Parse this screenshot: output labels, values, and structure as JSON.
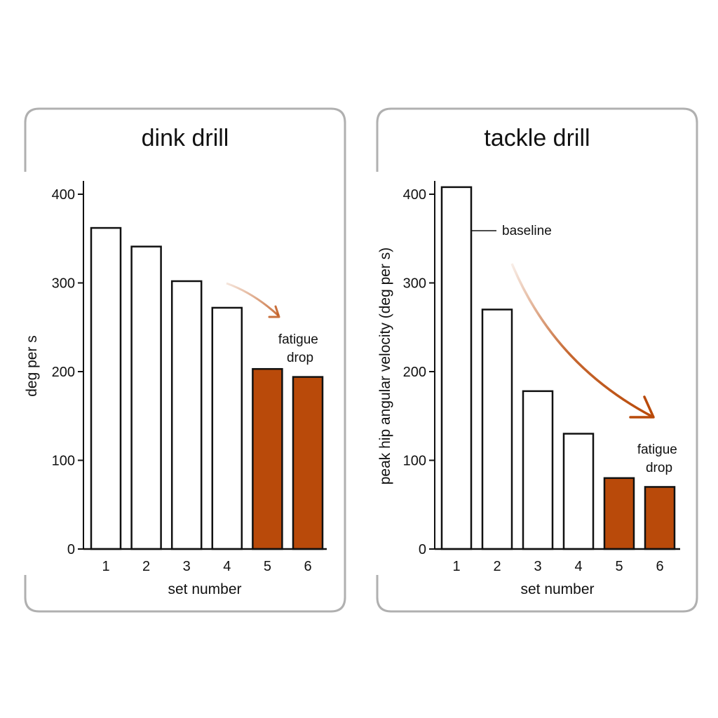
{
  "colors": {
    "highlight": "#b94a0a",
    "bar_outline": "#111111",
    "plain_fill": "#ffffff",
    "frame": "#b0b0b0",
    "arrow": "#c0571a"
  },
  "chart_data": [
    {
      "type": "bar",
      "title": "dink drill",
      "xlabel": "set number",
      "ylabel": "deg per s",
      "categories": [
        "1",
        "2",
        "3",
        "4",
        "5",
        "6"
      ],
      "values": [
        362,
        341,
        302,
        272,
        203,
        194
      ],
      "highlighted": [
        false,
        false,
        false,
        false,
        true,
        true
      ],
      "ylim": [
        0,
        400
      ],
      "yticks": [
        0,
        100,
        200,
        300,
        400
      ],
      "grid": false,
      "annotations": [
        {
          "text": [
            "fatigue",
            "drop"
          ],
          "style": "arrow"
        }
      ]
    },
    {
      "type": "bar",
      "title": "tackle drill",
      "xlabel": "set number",
      "ylabel": "peak hip angular velocity (deg per s)",
      "categories": [
        "1",
        "2",
        "3",
        "4",
        "5",
        "6"
      ],
      "values": [
        408,
        270,
        178,
        130,
        80,
        70
      ],
      "highlighted": [
        false,
        false,
        false,
        false,
        true,
        true
      ],
      "ylim": [
        0,
        400
      ],
      "yticks": [
        0,
        100,
        200,
        300,
        400
      ],
      "grid": false,
      "annotations": [
        {
          "text": [
            "baseline"
          ],
          "style": "leader"
        },
        {
          "text": [
            "fatigue",
            "drop"
          ],
          "style": "arrow"
        }
      ]
    }
  ]
}
